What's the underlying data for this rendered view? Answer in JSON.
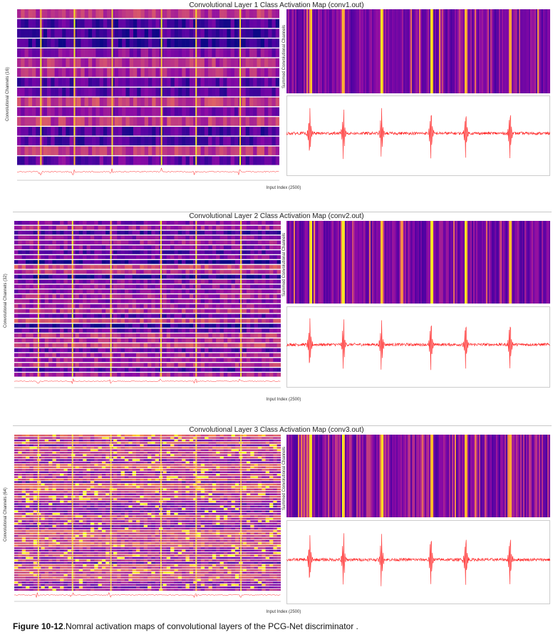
{
  "panels": [
    {
      "title": "Convolutional Layer 1 Class Activation Map (conv1.out)",
      "channels_label": "Convolutional Channels (16)",
      "summed_label": "Summed Convolutional Channels",
      "xlabel": "Input Index (2500)",
      "channels": 16
    },
    {
      "title": "Convolutional Layer 2 Class Activation Map (conv2.out)",
      "channels_label": "Convolutional Channels (32)",
      "summed_label": "Summed Convolutional Channels",
      "xlabel": "Input Index (2500)",
      "channels": 32
    },
    {
      "title": "Convolutional Layer 3 Class Activation Map (conv3.out)",
      "channels_label": "Convolutional Channels (64)",
      "summed_label": "Summed Convolutional Channels",
      "xlabel": "Input Index (2500)",
      "channels": 64
    }
  ],
  "caption": {
    "label": "Figure 10-12",
    "text": ".Nomral activation maps of convolutional layers of the PCG-Net discriminator ."
  },
  "chart_data": [
    {
      "type": "heatmap",
      "title": "Convolutional Layer 1 Class Activation Map (conv1.out)",
      "ylabel": "Convolutional Channels (16)",
      "xlabel": "Input Index (2500)",
      "summed_ylabel": "Summed Convolutional Channels",
      "channels": 16,
      "input_length": 2500,
      "colormap": "plasma",
      "signal_color": "#ff2020",
      "heartbeat_peaks": [
        220,
        540,
        900,
        1370,
        1700,
        2120
      ]
    },
    {
      "type": "heatmap",
      "title": "Convolutional Layer 2 Class Activation Map (conv2.out)",
      "ylabel": "Convolutional Channels (32)",
      "xlabel": "Input Index (2500)",
      "summed_ylabel": "Summed Convolutional Channels",
      "channels": 32,
      "input_length": 2500,
      "colormap": "plasma",
      "signal_color": "#ff2020",
      "heartbeat_peaks": [
        220,
        540,
        900,
        1370,
        1700,
        2120
      ]
    },
    {
      "type": "heatmap",
      "title": "Convolutional Layer 3 Class Activation Map (conv3.out)",
      "ylabel": "Convolutional Channels (64)",
      "xlabel": "Input Index (2500)",
      "summed_ylabel": "Summed Convolutional Channels",
      "channels": 64,
      "input_length": 2500,
      "colormap": "plasma",
      "signal_color": "#ff2020",
      "heartbeat_peaks": [
        220,
        540,
        900,
        1370,
        1700,
        2120
      ]
    }
  ]
}
